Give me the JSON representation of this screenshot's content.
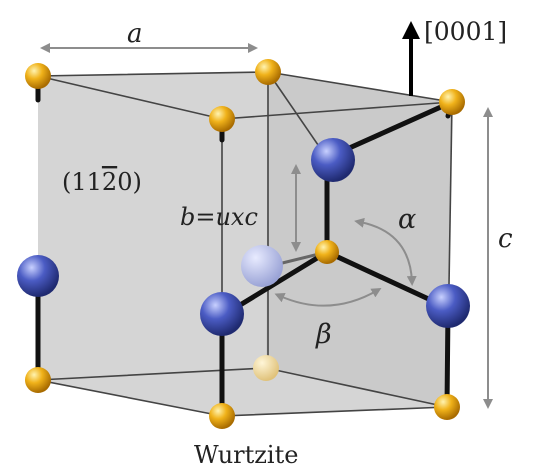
{
  "labels": {
    "a": "a",
    "c": "c",
    "direction": "[0001]",
    "plane_prefix": "(11",
    "plane_bar": "2",
    "plane_suffix": "0)",
    "b_relation": "b=uxc",
    "alpha": "α",
    "beta": "β",
    "caption": "Wurtzite"
  },
  "colors": {
    "gold_atom": "#e8a317",
    "blue_atom": "#3f4fa8",
    "plane_fill": "#c9c9c9",
    "bond": "#111111",
    "measure_arrow": "#9a9a9a"
  }
}
